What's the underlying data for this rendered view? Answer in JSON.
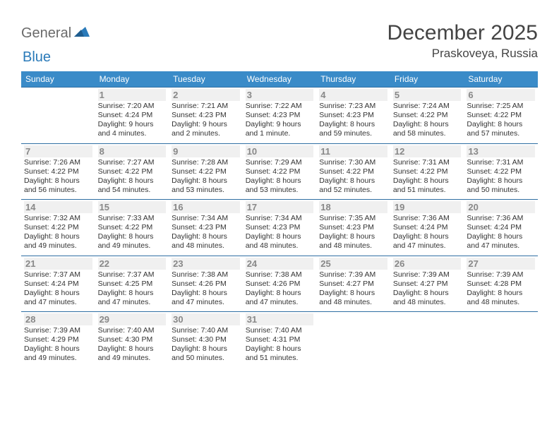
{
  "logo": {
    "text1": "General",
    "text2": "Blue"
  },
  "title": "December 2025",
  "subtitle": "Praskoveya, Russia",
  "colors": {
    "header_bg": "#3a8bc8",
    "row_border": "#2f6ea3",
    "daynum_bg": "#f0f0f0",
    "daynum_color": "#888888",
    "text_color": "#333333",
    "logo_gray": "#6a6a6a",
    "logo_blue": "#2a7ab9",
    "bg": "#ffffff"
  },
  "typography": {
    "title_fontsize": 30,
    "subtitle_fontsize": 17,
    "dow_fontsize": 12,
    "daynum_fontsize": 13,
    "daytext_fontsize": 10.5
  },
  "dow": [
    "Sunday",
    "Monday",
    "Tuesday",
    "Wednesday",
    "Thursday",
    "Friday",
    "Saturday"
  ],
  "weeks": [
    [
      null,
      {
        "n": "1",
        "sr": "7:20 AM",
        "ss": "4:24 PM",
        "dl": "Daylight: 9 hours and 4 minutes."
      },
      {
        "n": "2",
        "sr": "7:21 AM",
        "ss": "4:23 PM",
        "dl": "Daylight: 9 hours and 2 minutes."
      },
      {
        "n": "3",
        "sr": "7:22 AM",
        "ss": "4:23 PM",
        "dl": "Daylight: 9 hours and 1 minute."
      },
      {
        "n": "4",
        "sr": "7:23 AM",
        "ss": "4:23 PM",
        "dl": "Daylight: 8 hours and 59 minutes."
      },
      {
        "n": "5",
        "sr": "7:24 AM",
        "ss": "4:22 PM",
        "dl": "Daylight: 8 hours and 58 minutes."
      },
      {
        "n": "6",
        "sr": "7:25 AM",
        "ss": "4:22 PM",
        "dl": "Daylight: 8 hours and 57 minutes."
      }
    ],
    [
      {
        "n": "7",
        "sr": "7:26 AM",
        "ss": "4:22 PM",
        "dl": "Daylight: 8 hours and 56 minutes."
      },
      {
        "n": "8",
        "sr": "7:27 AM",
        "ss": "4:22 PM",
        "dl": "Daylight: 8 hours and 54 minutes."
      },
      {
        "n": "9",
        "sr": "7:28 AM",
        "ss": "4:22 PM",
        "dl": "Daylight: 8 hours and 53 minutes."
      },
      {
        "n": "10",
        "sr": "7:29 AM",
        "ss": "4:22 PM",
        "dl": "Daylight: 8 hours and 53 minutes."
      },
      {
        "n": "11",
        "sr": "7:30 AM",
        "ss": "4:22 PM",
        "dl": "Daylight: 8 hours and 52 minutes."
      },
      {
        "n": "12",
        "sr": "7:31 AM",
        "ss": "4:22 PM",
        "dl": "Daylight: 8 hours and 51 minutes."
      },
      {
        "n": "13",
        "sr": "7:31 AM",
        "ss": "4:22 PM",
        "dl": "Daylight: 8 hours and 50 minutes."
      }
    ],
    [
      {
        "n": "14",
        "sr": "7:32 AM",
        "ss": "4:22 PM",
        "dl": "Daylight: 8 hours and 49 minutes."
      },
      {
        "n": "15",
        "sr": "7:33 AM",
        "ss": "4:22 PM",
        "dl": "Daylight: 8 hours and 49 minutes."
      },
      {
        "n": "16",
        "sr": "7:34 AM",
        "ss": "4:23 PM",
        "dl": "Daylight: 8 hours and 48 minutes."
      },
      {
        "n": "17",
        "sr": "7:34 AM",
        "ss": "4:23 PM",
        "dl": "Daylight: 8 hours and 48 minutes."
      },
      {
        "n": "18",
        "sr": "7:35 AM",
        "ss": "4:23 PM",
        "dl": "Daylight: 8 hours and 48 minutes."
      },
      {
        "n": "19",
        "sr": "7:36 AM",
        "ss": "4:24 PM",
        "dl": "Daylight: 8 hours and 47 minutes."
      },
      {
        "n": "20",
        "sr": "7:36 AM",
        "ss": "4:24 PM",
        "dl": "Daylight: 8 hours and 47 minutes."
      }
    ],
    [
      {
        "n": "21",
        "sr": "7:37 AM",
        "ss": "4:24 PM",
        "dl": "Daylight: 8 hours and 47 minutes."
      },
      {
        "n": "22",
        "sr": "7:37 AM",
        "ss": "4:25 PM",
        "dl": "Daylight: 8 hours and 47 minutes."
      },
      {
        "n": "23",
        "sr": "7:38 AM",
        "ss": "4:26 PM",
        "dl": "Daylight: 8 hours and 47 minutes."
      },
      {
        "n": "24",
        "sr": "7:38 AM",
        "ss": "4:26 PM",
        "dl": "Daylight: 8 hours and 47 minutes."
      },
      {
        "n": "25",
        "sr": "7:39 AM",
        "ss": "4:27 PM",
        "dl": "Daylight: 8 hours and 48 minutes."
      },
      {
        "n": "26",
        "sr": "7:39 AM",
        "ss": "4:27 PM",
        "dl": "Daylight: 8 hours and 48 minutes."
      },
      {
        "n": "27",
        "sr": "7:39 AM",
        "ss": "4:28 PM",
        "dl": "Daylight: 8 hours and 48 minutes."
      }
    ],
    [
      {
        "n": "28",
        "sr": "7:39 AM",
        "ss": "4:29 PM",
        "dl": "Daylight: 8 hours and 49 minutes."
      },
      {
        "n": "29",
        "sr": "7:40 AM",
        "ss": "4:30 PM",
        "dl": "Daylight: 8 hours and 49 minutes."
      },
      {
        "n": "30",
        "sr": "7:40 AM",
        "ss": "4:30 PM",
        "dl": "Daylight: 8 hours and 50 minutes."
      },
      {
        "n": "31",
        "sr": "7:40 AM",
        "ss": "4:31 PM",
        "dl": "Daylight: 8 hours and 51 minutes."
      },
      null,
      null,
      null
    ]
  ],
  "labels": {
    "sunrise_prefix": "Sunrise: ",
    "sunset_prefix": "Sunset: "
  }
}
